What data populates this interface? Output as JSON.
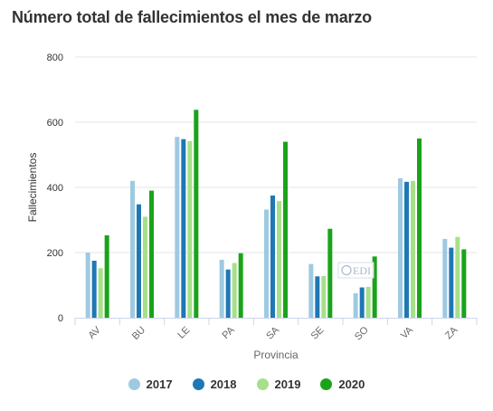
{
  "chart_data": {
    "type": "bar",
    "title": "Número total de fallecimientos el mes de marzo",
    "xlabel": "Provincia",
    "ylabel": "Fallecimientos",
    "categories": [
      "AV",
      "BU",
      "LE",
      "PA",
      "SA",
      "SE",
      "SO",
      "VA",
      "ZA"
    ],
    "ylim": [
      0,
      800
    ],
    "yticks": [
      0,
      200,
      400,
      600,
      800
    ],
    "grid": true,
    "legend_position": "bottom",
    "watermark": "EDI",
    "series": [
      {
        "name": "2017",
        "color": "#9ecae1",
        "values": [
          200,
          420,
          555,
          178,
          332,
          165,
          75,
          428,
          242
        ]
      },
      {
        "name": "2018",
        "color": "#1f78b4",
        "values": [
          175,
          348,
          548,
          148,
          375,
          127,
          93,
          417,
          215
        ]
      },
      {
        "name": "2019",
        "color": "#a6e08a",
        "values": [
          152,
          310,
          542,
          168,
          358,
          128,
          95,
          420,
          248
        ]
      },
      {
        "name": "2020",
        "color": "#1aa31a",
        "values": [
          253,
          390,
          638,
          198,
          540,
          273,
          188,
          550,
          210
        ]
      }
    ]
  }
}
